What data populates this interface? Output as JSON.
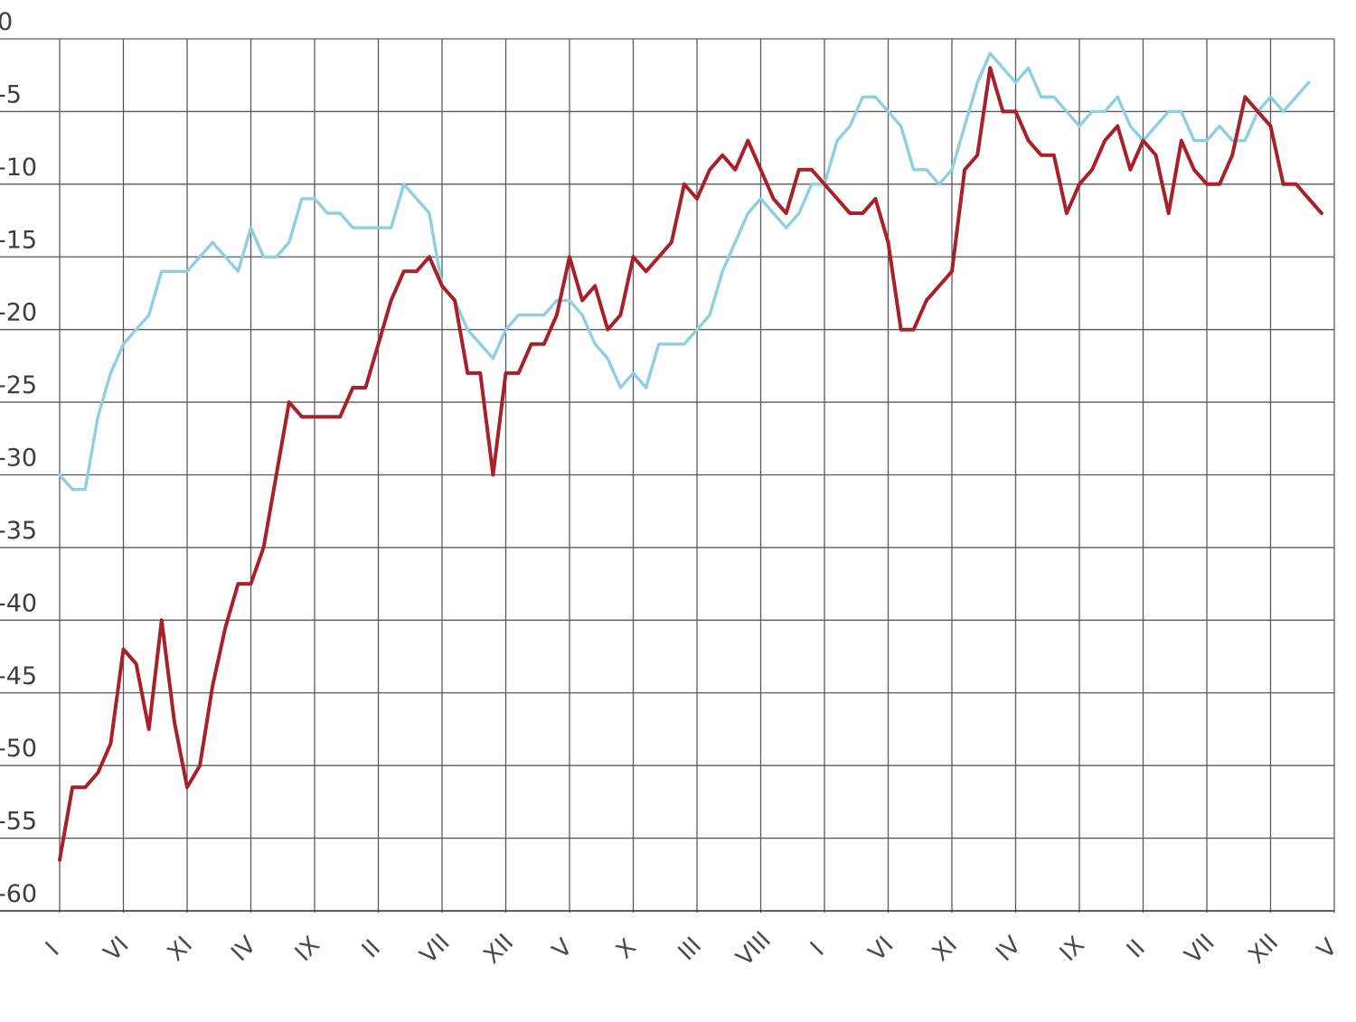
{
  "chart_data": {
    "type": "line",
    "title": "",
    "xlabel": "",
    "ylabel": "",
    "ylim": [
      -60,
      0
    ],
    "y_ticks": [
      "0",
      "-5",
      "-10",
      "-15",
      "-20",
      "-25",
      "-30",
      "-35",
      "-40",
      "-45",
      "-50",
      "-55",
      "-60"
    ],
    "y_tick_values": [
      0,
      -5,
      -10,
      -15,
      -20,
      -25,
      -30,
      -35,
      -40,
      -45,
      -50,
      -55,
      -60
    ],
    "x_ticks": [
      "I",
      "VI",
      "XI",
      "IV",
      "IX",
      "II",
      "VII",
      "XII",
      "V",
      "X",
      "III",
      "VIII",
      "I",
      "VI",
      "XI",
      "IV",
      "IX",
      "II",
      "VII",
      "XII",
      "V"
    ],
    "x_tick_index": [
      0,
      5,
      10,
      15,
      20,
      25,
      30,
      35,
      40,
      45,
      50,
      55,
      60,
      65,
      70,
      75,
      80,
      85,
      90,
      95,
      100
    ],
    "grid": true,
    "series": [
      {
        "color": "#a8202a",
        "values": [
          -56.5,
          -51.5,
          -51.5,
          -50.5,
          -48.5,
          -42,
          -43,
          -47.5,
          -40,
          -47,
          -51.5,
          -50,
          -44.5,
          -40.5,
          -37.5,
          -37.5,
          -35,
          -30,
          -25,
          -26,
          -26,
          -26,
          -26,
          -24,
          -24,
          -21,
          -18,
          -16,
          -16,
          -15,
          -17,
          -18,
          -23,
          -23,
          -30,
          -23,
          -23,
          -21,
          -21,
          -19,
          -15,
          -18,
          -17,
          -20,
          -19,
          -15,
          -16,
          -15,
          -14,
          -10,
          -11,
          -9,
          -8,
          -9,
          -7,
          -9,
          -11,
          -12,
          -9,
          -9,
          -10,
          -11,
          -12,
          -12,
          -11,
          -14,
          -20,
          -20,
          -18,
          -17,
          -16,
          -9,
          -8,
          -2,
          -5,
          -5,
          -7,
          -8,
          -8,
          -12,
          -10,
          -9,
          -7,
          -6,
          -9,
          -7,
          -8,
          -12,
          -7,
          -9,
          -10,
          -10,
          -8,
          -4,
          -5,
          -6,
          -10,
          -10,
          -11,
          -12
        ]
      },
      {
        "color": "#8ecfe0",
        "values": [
          -30,
          -31,
          -31,
          -26,
          -23,
          -21,
          -20,
          -19,
          -16,
          -16,
          -16,
          -15,
          -14,
          -15,
          -16,
          -13,
          -15,
          -15,
          -14,
          -11,
          -11,
          -12,
          -12,
          -13,
          -13,
          -13,
          -13,
          -10,
          -11,
          -12,
          -17,
          -18,
          -20,
          -21,
          -22,
          -20,
          -19,
          -19,
          -19,
          -18,
          -18,
          -19,
          -21,
          -22,
          -24,
          -23,
          -24,
          -21,
          -21,
          -21,
          -20,
          -19,
          -16,
          -14,
          -12,
          -11,
          -12,
          -13,
          -12,
          -10,
          -10,
          -7,
          -6,
          -4,
          -4,
          -5,
          -6,
          -9,
          -9,
          -10,
          -9,
          -6,
          -3,
          -1,
          -2,
          -3,
          -2,
          -4,
          -4,
          -5,
          -6,
          -5,
          -5,
          -4,
          -6,
          -7,
          -6,
          -5,
          -5,
          -7,
          -7,
          -6,
          -7,
          -7,
          -5,
          -4,
          -5,
          -4,
          -3
        ]
      }
    ]
  }
}
